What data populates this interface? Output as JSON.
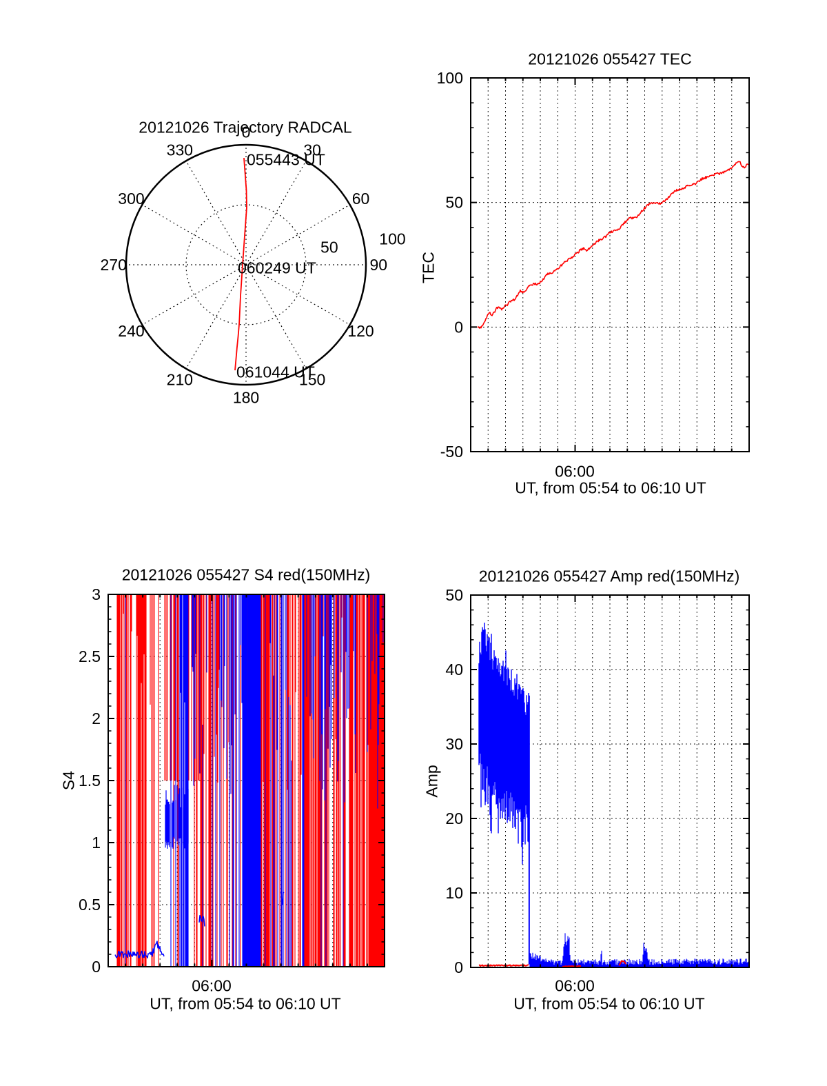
{
  "colors": {
    "red": "#ff0000",
    "blue": "#0000ff",
    "axis": "#000000",
    "background": "#ffffff"
  },
  "seed": 20121026,
  "chart_data": [
    {
      "id": "trajectory",
      "type": "polar-trajectory",
      "title": "20121026 Trajectory RADCAL",
      "azimuth_ticks": [
        "0",
        "30",
        "60",
        "90",
        "120",
        "150",
        "180",
        "210",
        "240",
        "270",
        "300",
        "330"
      ],
      "radial_ticks": [
        {
          "label": "50",
          "value": 50,
          "az_deg": 78,
          "r_frac": 0.71
        },
        {
          "label": "100",
          "value": 100,
          "az_deg": 80,
          "r_frac": 1.24
        }
      ],
      "rings": [
        50,
        100
      ],
      "annotations": [
        {
          "label": "055443 UT",
          "en": [
            -1.7,
            89
          ]
        },
        {
          "label": "060249 UT",
          "en": [
            -2.9,
            0
          ]
        },
        {
          "label": "061044 UT",
          "en": [
            -9.2,
            -88
          ]
        }
      ],
      "line_color": "#ff0000",
      "trajectory_en": [
        [
          -1.7,
          89
        ],
        [
          0.3,
          62
        ],
        [
          0.6,
          48
        ],
        [
          -0.3,
          36
        ],
        [
          -1.1,
          25
        ],
        [
          -2.0,
          12
        ],
        [
          -2.9,
          0
        ],
        [
          -3.8,
          -14
        ],
        [
          -4.6,
          -26
        ],
        [
          -5.7,
          -49
        ],
        [
          -6.6,
          -60
        ],
        [
          -7.5,
          -69
        ],
        [
          -8.4,
          -79
        ],
        [
          -9.2,
          -88
        ]
      ]
    },
    {
      "id": "tec",
      "type": "line",
      "title": "20121026 055427 TEC",
      "ylabel": "TEC",
      "xlabel": "UT, from 05:54 to 06:10 UT",
      "xtick_label": "06:00",
      "xtick_minute": 6,
      "x_range_minutes": [
        0,
        16
      ],
      "ylim": [
        -50,
        100
      ],
      "ytick_values": [
        100,
        50,
        0,
        -50
      ],
      "ytick_labels": [
        "100",
        "50",
        "0",
        "-50"
      ],
      "minor_y_step": 10,
      "hgrid": [
        0,
        50
      ],
      "noise_amp": 0.45,
      "series": [
        {
          "name": "TEC",
          "color": "#ff0000",
          "points_min_val": [
            [
              0.36,
              0
            ],
            [
              0.5,
              -0.6
            ],
            [
              0.65,
              0.5
            ],
            [
              0.85,
              3
            ],
            [
              1.0,
              5.5
            ],
            [
              1.1,
              6
            ],
            [
              1.2,
              4.5
            ],
            [
              1.35,
              6
            ],
            [
              1.5,
              7.5
            ],
            [
              1.65,
              8
            ],
            [
              1.8,
              7
            ],
            [
              1.95,
              8.5
            ],
            [
              2.1,
              9
            ],
            [
              2.3,
              10.5
            ],
            [
              2.5,
              11
            ],
            [
              2.7,
              13
            ],
            [
              2.85,
              14.5
            ],
            [
              3.0,
              14
            ],
            [
              3.15,
              14.5
            ],
            [
              3.3,
              16
            ],
            [
              3.5,
              17
            ],
            [
              3.7,
              17.5
            ],
            [
              3.85,
              17
            ],
            [
              4.0,
              18
            ],
            [
              4.2,
              19.5
            ],
            [
              4.35,
              21
            ],
            [
              4.5,
              21.5
            ],
            [
              4.7,
              22
            ],
            [
              4.9,
              23
            ],
            [
              5.1,
              24
            ],
            [
              5.3,
              25.5
            ],
            [
              5.5,
              26.5
            ],
            [
              5.7,
              27.5
            ],
            [
              5.9,
              28.5
            ],
            [
              6.1,
              29.5
            ],
            [
              6.3,
              31
            ],
            [
              6.5,
              31.5
            ],
            [
              6.65,
              30.5
            ],
            [
              6.8,
              31.5
            ],
            [
              7.0,
              32.5
            ],
            [
              7.2,
              34
            ],
            [
              7.4,
              35
            ],
            [
              7.6,
              35.5
            ],
            [
              7.8,
              36.5
            ],
            [
              8.0,
              38
            ],
            [
              8.2,
              38.5
            ],
            [
              8.4,
              39
            ],
            [
              8.6,
              40
            ],
            [
              8.8,
              41.5
            ],
            [
              9.0,
              43
            ],
            [
              9.2,
              44
            ],
            [
              9.35,
              43.5
            ],
            [
              9.5,
              44
            ],
            [
              9.7,
              45.5
            ],
            [
              9.9,
              47
            ],
            [
              10.1,
              48.5
            ],
            [
              10.3,
              49.5
            ],
            [
              10.5,
              50
            ],
            [
              10.7,
              50
            ],
            [
              10.9,
              49.5
            ],
            [
              11.1,
              50.5
            ],
            [
              11.3,
              51.5
            ],
            [
              11.5,
              53
            ],
            [
              11.7,
              54.5
            ],
            [
              11.9,
              55
            ],
            [
              12.1,
              55.5
            ],
            [
              12.3,
              56
            ],
            [
              12.5,
              57
            ],
            [
              12.7,
              57
            ],
            [
              12.9,
              57.5
            ],
            [
              13.1,
              58.5
            ],
            [
              13.3,
              59.5
            ],
            [
              13.5,
              60
            ],
            [
              13.7,
              60.5
            ],
            [
              13.9,
              61
            ],
            [
              14.1,
              61.5
            ],
            [
              14.3,
              61.5
            ],
            [
              14.5,
              62
            ],
            [
              14.7,
              63
            ],
            [
              14.9,
              63.5
            ],
            [
              15.1,
              64.5
            ],
            [
              15.3,
              66
            ],
            [
              15.45,
              66.5
            ],
            [
              15.6,
              64.5
            ],
            [
              15.75,
              64
            ],
            [
              15.9,
              65.5
            ],
            [
              16.0,
              65
            ]
          ]
        }
      ]
    },
    {
      "id": "s4",
      "type": "scintillation-bars",
      "title": "20121026 055427 S4 red(150MHz)",
      "ylabel": "S4",
      "xlabel": "UT, from 05:54 to 06:10 UT",
      "xtick_label": "06:00",
      "xtick_minute": 6,
      "x_range_minutes": [
        0,
        16
      ],
      "ylim": [
        0,
        3
      ],
      "ytick_values": [
        3,
        2.5,
        2,
        1.5,
        1,
        0.5,
        0
      ],
      "ytick_labels": [
        "3",
        "2.5",
        "2",
        "1.5",
        "1",
        "0.5",
        "0"
      ],
      "minor_y_step": 0.1,
      "hgrid": [
        0.5,
        1,
        1.5,
        2,
        2.5
      ],
      "red_color": "#ff0000",
      "blue_color": "#0000ff",
      "segments": [
        {
          "t0": 0.4,
          "t1": 1.6,
          "red": 0.55,
          "blue": 0.02,
          "rm": "f",
          "bm": "x"
        },
        {
          "t0": 1.6,
          "t1": 2.2,
          "red": 0.97,
          "blue": 0.0,
          "rm": "f",
          "bm": "x"
        },
        {
          "t0": 2.2,
          "t1": 2.7,
          "red": 0.5,
          "blue": 0.03,
          "rm": "f",
          "bm": "x"
        },
        {
          "t0": 2.7,
          "t1": 3.25,
          "red": 0.35,
          "blue": 0.05,
          "rm": "f",
          "bm": "x"
        },
        {
          "t0": 3.25,
          "t1": 4.0,
          "red": 0.45,
          "blue": 0.15,
          "rm": "b",
          "bm": "x"
        },
        {
          "t0": 4.0,
          "t1": 4.65,
          "red": 0.25,
          "blue": 0.6,
          "rm": "f",
          "bm": "x"
        },
        {
          "t0": 4.65,
          "t1": 5.3,
          "red": 0.45,
          "blue": 0.45,
          "rm": "b",
          "bm": "t"
        },
        {
          "t0": 5.3,
          "t1": 5.65,
          "red": 0.25,
          "blue": 0.08,
          "rm": "f",
          "bm": "x"
        },
        {
          "t0": 5.65,
          "t1": 6.4,
          "red": 0.55,
          "blue": 0.12,
          "rm": "f",
          "bm": "x"
        },
        {
          "t0": 6.4,
          "t1": 7.3,
          "red": 0.45,
          "blue": 0.3,
          "rm": "f",
          "bm": "t"
        },
        {
          "t0": 7.3,
          "t1": 7.75,
          "red": 0.35,
          "blue": 0.5,
          "rm": "f",
          "bm": "t"
        },
        {
          "t0": 7.75,
          "t1": 8.85,
          "red": 0.05,
          "blue": 0.98,
          "rm": "f",
          "bm": "s"
        },
        {
          "t0": 8.85,
          "t1": 9.35,
          "red": 0.75,
          "blue": 0.15,
          "rm": "f",
          "bm": "x"
        },
        {
          "t0": 9.35,
          "t1": 10.3,
          "red": 0.35,
          "blue": 0.5,
          "rm": "f",
          "bm": "x"
        },
        {
          "t0": 10.3,
          "t1": 11.3,
          "red": 0.6,
          "blue": 0.3,
          "rm": "f",
          "bm": "x"
        },
        {
          "t0": 11.3,
          "t1": 12.85,
          "red": 0.85,
          "blue": 0.3,
          "rm": "f",
          "bm": "t"
        },
        {
          "t0": 12.85,
          "t1": 13.95,
          "red": 0.5,
          "blue": 0.5,
          "rm": "f",
          "bm": "t"
        },
        {
          "t0": 13.95,
          "t1": 15.05,
          "red": 0.75,
          "blue": 0.3,
          "rm": "f",
          "bm": "t"
        },
        {
          "t0": 15.05,
          "t1": 16.0,
          "red": 1.0,
          "blue": 0.35,
          "rm": "s",
          "bm": "o"
        }
      ],
      "features": [
        {
          "kind": "line",
          "t0": 0.4,
          "t1": 3.25,
          "base": 0.1,
          "jitter": 0.03,
          "bump": [
            2.85,
            0.08,
            0.2
          ]
        },
        {
          "kind": "band",
          "t0": 3.3,
          "t1": 4.65,
          "lo": 0.95,
          "hi": 1.48,
          "jitter": 0.1
        },
        {
          "kind": "line",
          "t0": 5.28,
          "t1": 5.62,
          "base": 0.37,
          "jitter": 0.045
        },
        {
          "kind": "line",
          "t0": 9.98,
          "t1": 10.2,
          "base": 0.55,
          "jitter": 0.06
        }
      ]
    },
    {
      "id": "amp",
      "type": "noise-band",
      "title": "20121026 055427 Amp red(150MHz)",
      "ylabel": "Amp",
      "xlabel": "UT, from 05:54 to 06:10 UT",
      "xtick_label": "06:00",
      "xtick_minute": 6,
      "x_range_minutes": [
        0,
        16
      ],
      "ylim": [
        0,
        50
      ],
      "ytick_values": [
        50,
        40,
        30,
        20,
        10,
        0
      ],
      "ytick_labels": [
        "50",
        "40",
        "30",
        "20",
        "10",
        "0"
      ],
      "minor_y_step": 2,
      "hgrid": [
        10,
        20,
        30,
        40
      ],
      "blue_color": "#0000ff",
      "red_color": "#ff0000",
      "band": {
        "t0": 0.48,
        "t1": 3.33,
        "top_env": [
          [
            0.48,
            44
          ],
          [
            0.7,
            46
          ],
          [
            1.2,
            43.5
          ],
          [
            1.7,
            41
          ],
          [
            2.2,
            40.5
          ],
          [
            2.6,
            38.5
          ],
          [
            3.0,
            37.5
          ],
          [
            3.33,
            37
          ]
        ],
        "bot_env": [
          [
            0.48,
            23
          ],
          [
            1.0,
            21
          ],
          [
            1.6,
            20
          ],
          [
            2.2,
            18
          ],
          [
            2.8,
            15.5
          ],
          [
            3.33,
            16
          ]
        ]
      },
      "transition": {
        "t": 3.36,
        "v0": 0.4,
        "v1": 36.5
      },
      "tail": {
        "t0": 3.4,
        "t1": 4.6,
        "amp_start": 2.2,
        "amp_end": 0.9
      },
      "noise": {
        "t0": 3.4,
        "t1": 16,
        "base": 0.25,
        "var": 0.8,
        "trend": 0.15
      },
      "spikes": [
        {
          "pts": [
            [
              5.28,
              0.8
            ],
            [
              5.35,
              3.8
            ],
            [
              5.42,
              4.7
            ],
            [
              5.5,
              3.4
            ],
            [
              5.58,
              5.2
            ],
            [
              5.66,
              4.4
            ],
            [
              5.72,
              0.9
            ]
          ]
        },
        {
          "pts": [
            [
              7.46,
              0.9
            ],
            [
              7.5,
              3.3
            ],
            [
              7.56,
              0.8
            ]
          ]
        },
        {
          "pts": [
            [
              9.86,
              0.9
            ],
            [
              9.95,
              3.6
            ],
            [
              10.02,
              2.4
            ],
            [
              10.1,
              2.9
            ],
            [
              10.18,
              1.5
            ],
            [
              10.24,
              0.8
            ]
          ]
        }
      ],
      "red_segments": [
        {
          "pts": [
            [
              0.48,
              0.25
            ],
            [
              3.33,
              0.28
            ]
          ],
          "jitter": 0.07
        },
        {
          "pts": [
            [
              5.3,
              0.13
            ],
            [
              6.35,
              0.16
            ]
          ],
          "jitter": 0.05
        },
        {
          "pts": [
            [
              8.52,
              0.25
            ],
            [
              8.68,
              0.9
            ],
            [
              8.82,
              0.8
            ],
            [
              8.95,
              0.25
            ]
          ],
          "jitter": 0.05
        }
      ]
    }
  ]
}
